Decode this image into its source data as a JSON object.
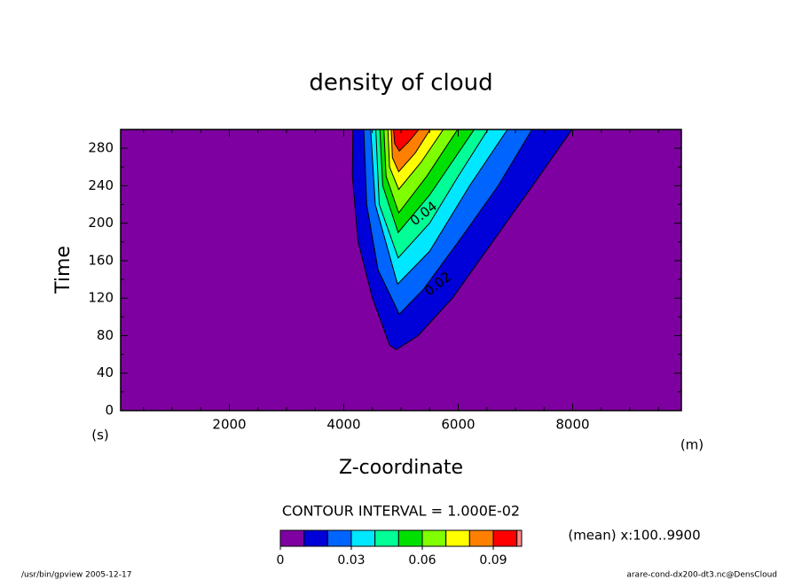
{
  "chart_data": {
    "type": "contour",
    "title": "density of cloud",
    "xlabel": "Z-coordinate",
    "ylabel": "Time",
    "xunit": "(m)",
    "yunit": "(s)",
    "xlim": [
      100,
      9900
    ],
    "ylim": [
      0,
      300
    ],
    "xticks": [
      2000,
      4000,
      6000,
      8000
    ],
    "yticks": [
      0,
      40,
      80,
      120,
      160,
      200,
      240,
      280
    ],
    "xminorticks": [
      500,
      1000,
      1500,
      2500,
      3000,
      3500,
      4500,
      5000,
      5500,
      6500,
      7000,
      7500,
      8500,
      9000,
      9500
    ],
    "yminorticks": [
      20,
      60,
      100,
      140,
      180,
      220,
      260,
      300
    ],
    "contours": [
      {
        "level": 0.01,
        "points": [
          [
            4160,
            300
          ],
          [
            4150,
            250
          ],
          [
            4250,
            180
          ],
          [
            4500,
            120
          ],
          [
            4800,
            70
          ],
          [
            4920,
            65
          ],
          [
            5300,
            80
          ],
          [
            5900,
            120
          ],
          [
            6600,
            180
          ],
          [
            7300,
            240
          ],
          [
            7990,
            300
          ]
        ]
      },
      {
        "level": 0.02,
        "points": [
          [
            4350,
            300
          ],
          [
            4400,
            220
          ],
          [
            4600,
            150
          ],
          [
            4970,
            103
          ],
          [
            5400,
            130
          ],
          [
            6000,
            180
          ],
          [
            6700,
            240
          ],
          [
            7290,
            300
          ]
        ]
      },
      {
        "level": 0.03,
        "points": [
          [
            4470,
            300
          ],
          [
            4550,
            220
          ],
          [
            4940,
            135
          ],
          [
            5500,
            170
          ],
          [
            6200,
            240
          ],
          [
            6860,
            300
          ]
        ]
      },
      {
        "level": 0.04,
        "points": [
          [
            4560,
            300
          ],
          [
            4620,
            220
          ],
          [
            4950,
            163
          ],
          [
            5500,
            200
          ],
          [
            6000,
            250
          ],
          [
            6520,
            300
          ]
        ]
      },
      {
        "level": 0.05,
        "points": [
          [
            4630,
            300
          ],
          [
            4680,
            240
          ],
          [
            4950,
            190
          ],
          [
            5500,
            230
          ],
          [
            6280,
            300
          ]
        ]
      },
      {
        "level": 0.06,
        "points": [
          [
            4700,
            300
          ],
          [
            4740,
            250
          ],
          [
            4960,
            211
          ],
          [
            5450,
            250
          ],
          [
            5990,
            300
          ]
        ]
      },
      {
        "level": 0.07,
        "points": [
          [
            4770,
            300
          ],
          [
            4800,
            260
          ],
          [
            4960,
            236
          ],
          [
            5350,
            265
          ],
          [
            5740,
            300
          ]
        ]
      },
      {
        "level": 0.08,
        "points": [
          [
            4830,
            300
          ],
          [
            4850,
            270
          ],
          [
            4960,
            255
          ],
          [
            5250,
            275
          ],
          [
            5510,
            300
          ]
        ]
      },
      {
        "level": 0.09,
        "points": [
          [
            4870,
            300
          ],
          [
            4890,
            285
          ],
          [
            4970,
            277
          ],
          [
            5150,
            288
          ],
          [
            5310,
            300
          ]
        ]
      }
    ],
    "contour_labels": [
      {
        "label": "0.04",
        "x": 5400,
        "y": 210
      },
      {
        "label": "0.02",
        "x": 5650,
        "y": 135
      }
    ],
    "colorbar": {
      "colors": [
        "#7e00a0",
        "#0000d8",
        "#0064ff",
        "#00e8ff",
        "#00ff96",
        "#00e000",
        "#80ff00",
        "#ffff00",
        "#ff8000",
        "#ff0000",
        "#ff8888"
      ],
      "levels": [
        0,
        0.01,
        0.02,
        0.03,
        0.04,
        0.05,
        0.06,
        0.07,
        0.08,
        0.09,
        0.1
      ],
      "lim": [
        0,
        0.102
      ],
      "ticks": [
        0,
        0.03,
        0.06,
        0.09
      ]
    },
    "contour_interval": "CONTOUR INTERVAL = 1.000E-02",
    "mean_note": "(mean) x:100..9900",
    "footer_left": "/usr/bin/gpview  2005-12-17",
    "footer_right": "arare-cond-dx200-dt3.nc@DensCloud"
  }
}
